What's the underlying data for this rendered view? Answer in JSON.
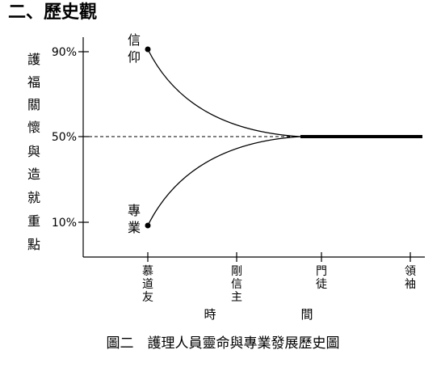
{
  "section_title": "二、歷史觀",
  "y_axis_label": "護福關懷與造就重點",
  "y_ticks": [
    "90%",
    "50%",
    "10%"
  ],
  "curve_labels": {
    "upper": "信仰",
    "lower": "專業"
  },
  "x_ticks": [
    "慕道友",
    "剛信主",
    "門徒",
    "領袖"
  ],
  "x_axis_label": "時間",
  "caption": "圖二　護理人員靈命與專業發展歷史圖",
  "chart_data": {
    "type": "line",
    "title": "二、歷史觀",
    "ylabel": "護福關懷與造就重點",
    "xlabel": "時間",
    "categories": [
      "慕道友",
      "剛信主",
      "門徒",
      "領袖"
    ],
    "yticks": [
      10,
      50,
      90
    ],
    "series": [
      {
        "name": "信仰",
        "description_points": [
          [
            0,
            90
          ],
          [
            2,
            50
          ],
          [
            3,
            50
          ]
        ]
      },
      {
        "name": "專業",
        "description_points": [
          [
            0,
            10
          ],
          [
            2,
            50
          ],
          [
            3,
            50
          ]
        ]
      }
    ]
  }
}
